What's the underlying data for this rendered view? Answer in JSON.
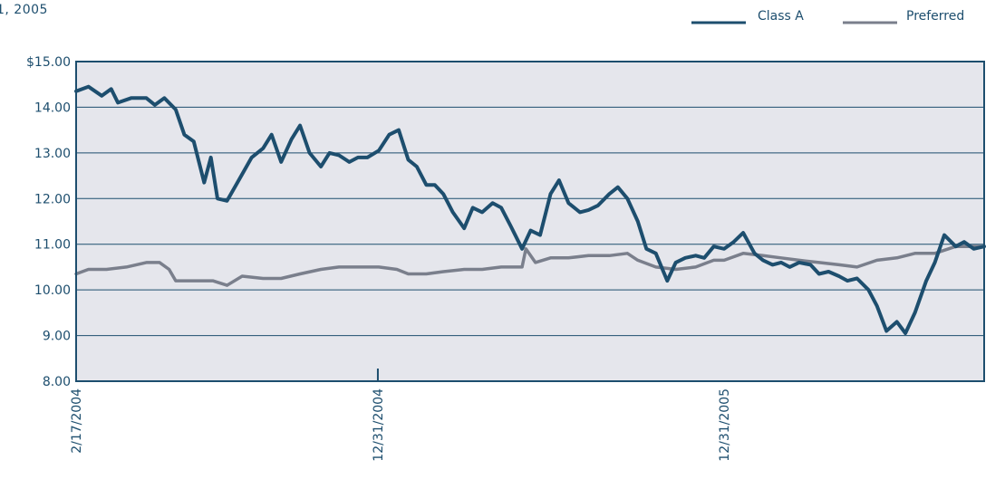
{
  "header": {
    "corner_text": "1, 2005"
  },
  "chart_data": {
    "type": "line",
    "ylim": [
      8,
      15
    ],
    "yticks": [
      {
        "value": 15,
        "label": "$15.00"
      },
      {
        "value": 14,
        "label": "14.00"
      },
      {
        "value": 13,
        "label": "13.00"
      },
      {
        "value": 12,
        "label": "12.00"
      },
      {
        "value": 11,
        "label": "11.00"
      },
      {
        "value": 10,
        "label": "10.00"
      },
      {
        "value": 9,
        "label": "9.00"
      },
      {
        "value": 8,
        "label": "8.00"
      }
    ],
    "xticks": [
      "2/17/2004",
      "12/31/2004",
      "12/31/2005"
    ],
    "xlim": [
      "2/17/2004",
      "12/31/2005"
    ],
    "grid": true,
    "legend": "top-right",
    "series": [
      {
        "name": "Class A",
        "color": "#1d4e6e",
        "points": [
          [
            "2/17/2004",
            14.35
          ],
          [
            "3/1/2004",
            14.45
          ],
          [
            "3/15/2004",
            14.25
          ],
          [
            "3/25/2004",
            14.4
          ],
          [
            "4/1/2004",
            14.1
          ],
          [
            "4/15/2004",
            14.2
          ],
          [
            "5/1/2004",
            14.2
          ],
          [
            "5/10/2004",
            14.05
          ],
          [
            "5/20/2004",
            14.2
          ],
          [
            "6/1/2004",
            13.95
          ],
          [
            "6/10/2004",
            13.4
          ],
          [
            "6/20/2004",
            13.25
          ],
          [
            "7/1/2004",
            12.35
          ],
          [
            "7/8/2004",
            12.9
          ],
          [
            "7/15/2004",
            12.0
          ],
          [
            "7/25/2004",
            11.95
          ],
          [
            "8/5/2004",
            12.35
          ],
          [
            "8/20/2004",
            12.9
          ],
          [
            "9/1/2004",
            13.1
          ],
          [
            "9/10/2004",
            13.4
          ],
          [
            "9/20/2004",
            12.8
          ],
          [
            "10/1/2004",
            13.3
          ],
          [
            "10/10/2004",
            13.6
          ],
          [
            "10/20/2004",
            13.0
          ],
          [
            "11/1/2004",
            12.7
          ],
          [
            "11/10/2004",
            13.0
          ],
          [
            "11/20/2004",
            12.95
          ],
          [
            "12/1/2004",
            12.8
          ],
          [
            "12/10/2004",
            12.9
          ],
          [
            "12/20/2004",
            12.9
          ],
          [
            "1/1/2005",
            13.05
          ],
          [
            "1/12/2005",
            13.4
          ],
          [
            "1/22/2005",
            13.5
          ],
          [
            "2/1/2005",
            12.85
          ],
          [
            "2/10/2005",
            12.7
          ],
          [
            "2/20/2005",
            12.3
          ],
          [
            "3/1/2005",
            12.3
          ],
          [
            "3/10/2005",
            12.1
          ],
          [
            "3/20/2005",
            11.7
          ],
          [
            "4/1/2005",
            11.35
          ],
          [
            "4/10/2005",
            11.8
          ],
          [
            "4/20/2005",
            11.7
          ],
          [
            "5/1/2005",
            11.9
          ],
          [
            "5/10/2005",
            11.8
          ],
          [
            "5/20/2005",
            11.4
          ],
          [
            "6/1/2005",
            10.9
          ],
          [
            "6/10/2005",
            11.3
          ],
          [
            "6/20/2005",
            11.2
          ],
          [
            "7/1/2005",
            12.1
          ],
          [
            "7/10/2005",
            12.4
          ],
          [
            "7/20/2005",
            11.9
          ],
          [
            "8/1/2005",
            11.7
          ],
          [
            "8/10/2005",
            11.75
          ],
          [
            "8/20/2005",
            11.85
          ],
          [
            "9/1/2005",
            12.1
          ],
          [
            "9/10/2005",
            12.25
          ],
          [
            "9/20/2005",
            12.0
          ],
          [
            "10/1/2005",
            11.5
          ],
          [
            "10/10/2005",
            10.9
          ],
          [
            "10/20/2005",
            10.8
          ],
          [
            "11/1/2005",
            10.2
          ],
          [
            "11/10/2005",
            10.6
          ],
          [
            "11/20/2005",
            10.7
          ],
          [
            "12/1/2005",
            10.75
          ],
          [
            "12/10/2005",
            10.7
          ],
          [
            "12/20/2005",
            10.95
          ],
          [
            "12/31/2005",
            10.9
          ],
          [
            "1/10/2006",
            11.05
          ],
          [
            "1/20/2006",
            11.25
          ],
          [
            "2/1/2006",
            10.8
          ],
          [
            "2/10/2006",
            10.65
          ],
          [
            "2/20/2006",
            10.55
          ],
          [
            "3/1/2006",
            10.6
          ],
          [
            "3/10/2006",
            10.5
          ],
          [
            "3/20/2006",
            10.6
          ],
          [
            "4/1/2006",
            10.55
          ],
          [
            "4/10/2006",
            10.35
          ],
          [
            "4/20/2006",
            10.4
          ],
          [
            "5/1/2006",
            10.3
          ],
          [
            "5/10/2006",
            10.2
          ],
          [
            "5/20/2006",
            10.25
          ],
          [
            "6/1/2006",
            10.0
          ],
          [
            "6/10/2006",
            9.65
          ],
          [
            "6/20/2006",
            9.1
          ],
          [
            "7/1/2006",
            9.3
          ],
          [
            "7/10/2006",
            9.05
          ],
          [
            "7/20/2006",
            9.5
          ],
          [
            "8/1/2006",
            10.2
          ],
          [
            "8/10/2006",
            10.6
          ],
          [
            "8/20/2006",
            11.2
          ],
          [
            "9/1/2006",
            10.95
          ],
          [
            "9/10/2006",
            11.05
          ],
          [
            "9/20/2006",
            10.9
          ],
          [
            "10/1/2006",
            10.95
          ]
        ]
      },
      {
        "name": "Preferred",
        "color": "#7a7f8c",
        "points": [
          [
            "2/17/2004",
            10.35
          ],
          [
            "3/1/2004",
            10.45
          ],
          [
            "3/20/2004",
            10.45
          ],
          [
            "4/10/2004",
            10.5
          ],
          [
            "5/1/2004",
            10.6
          ],
          [
            "5/15/2004",
            10.6
          ],
          [
            "5/25/2004",
            10.45
          ],
          [
            "6/1/2004",
            10.2
          ],
          [
            "6/20/2004",
            10.2
          ],
          [
            "7/10/2004",
            10.2
          ],
          [
            "7/25/2004",
            10.1
          ],
          [
            "8/10/2004",
            10.3
          ],
          [
            "9/1/2004",
            10.25
          ],
          [
            "9/20/2004",
            10.25
          ],
          [
            "10/10/2004",
            10.35
          ],
          [
            "11/1/2004",
            10.45
          ],
          [
            "11/20/2004",
            10.5
          ],
          [
            "12/10/2004",
            10.5
          ],
          [
            "1/1/2005",
            10.5
          ],
          [
            "1/20/2005",
            10.45
          ],
          [
            "2/1/2005",
            10.35
          ],
          [
            "2/20/2005",
            10.35
          ],
          [
            "3/10/2005",
            10.4
          ],
          [
            "4/1/2005",
            10.45
          ],
          [
            "4/20/2005",
            10.45
          ],
          [
            "5/10/2005",
            10.5
          ],
          [
            "6/1/2005",
            10.5
          ],
          [
            "6/5/2005",
            10.9
          ],
          [
            "6/15/2005",
            10.6
          ],
          [
            "7/1/2005",
            10.7
          ],
          [
            "7/20/2005",
            10.7
          ],
          [
            "8/10/2005",
            10.75
          ],
          [
            "9/1/2005",
            10.75
          ],
          [
            "9/20/2005",
            10.8
          ],
          [
            "10/1/2005",
            10.65
          ],
          [
            "10/20/2005",
            10.5
          ],
          [
            "11/10/2005",
            10.45
          ],
          [
            "12/1/2005",
            10.5
          ],
          [
            "12/20/2005",
            10.65
          ],
          [
            "12/31/2005",
            10.65
          ],
          [
            "1/20/2006",
            10.8
          ],
          [
            "2/10/2006",
            10.75
          ],
          [
            "3/1/2006",
            10.7
          ],
          [
            "3/20/2006",
            10.65
          ],
          [
            "4/10/2006",
            10.6
          ],
          [
            "5/1/2006",
            10.55
          ],
          [
            "5/20/2006",
            10.5
          ],
          [
            "6/10/2006",
            10.65
          ],
          [
            "7/1/2006",
            10.7
          ],
          [
            "7/20/2006",
            10.8
          ],
          [
            "8/10/2006",
            10.8
          ],
          [
            "9/1/2006",
            10.95
          ],
          [
            "9/20/2006",
            10.95
          ],
          [
            "10/1/2006",
            10.95
          ]
        ]
      }
    ]
  }
}
